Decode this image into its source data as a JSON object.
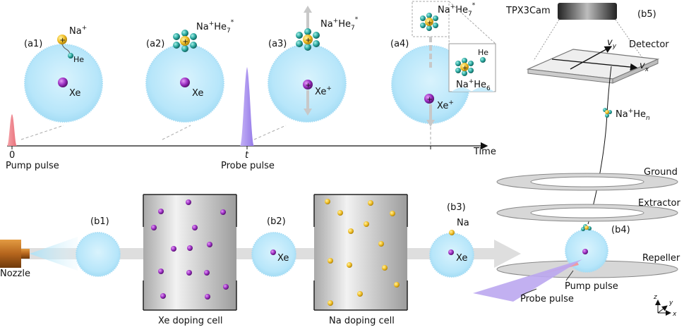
{
  "panels": {
    "a1": {
      "tag": "(a1)",
      "ion": "Na",
      "ion_sup": "+",
      "atom": "He",
      "core": "Xe"
    },
    "a2": {
      "tag": "(a2)",
      "cluster": "Na",
      "cluster_sup": "+",
      "cluster_tail": "He",
      "cluster_sub": "7",
      "cluster_star": "*",
      "core": "Xe"
    },
    "a3": {
      "tag": "(a3)",
      "cluster": "Na",
      "cluster_sup": "+",
      "cluster_tail": "He",
      "cluster_sub": "7",
      "cluster_star": "*",
      "core": "Xe",
      "core_sup": "+"
    },
    "a4": {
      "tag": "(a4)",
      "cluster": "Na",
      "cluster_sup": "+",
      "cluster_tail": "He",
      "cluster_sub": "7",
      "cluster_star": "*",
      "inset_atom": "He",
      "inset_cluster": "Na",
      "inset_cluster_sup": "+",
      "inset_tail": "He",
      "inset_sub": "6",
      "core": "Xe",
      "core_sup": "+"
    }
  },
  "timeline": {
    "zero": "0",
    "t": "t",
    "axis": "Time",
    "pump_label": "Pump pulse",
    "probe_label": "Probe pulse"
  },
  "detector": {
    "tag": "(b5)",
    "camera": "TPX3Cam",
    "label": "Detector",
    "vy": "v",
    "vy_sub": "y",
    "vx": "v",
    "vx_sub": "x",
    "ion": "Na",
    "ion_sup": "+",
    "ion_tail": "He",
    "ion_sub": "n"
  },
  "electrodes": {
    "ground": "Ground",
    "extractor": "Extractor",
    "repeller": "Repeller",
    "tag": "(b4)",
    "pump_label": "Pump pulse",
    "probe_label": "Probe pulse",
    "ax_z": "z",
    "ax_y": "y",
    "ax_x": "x"
  },
  "beamline": {
    "nozzle": "Nozzle",
    "b1": "(b1)",
    "b2": "(b2)",
    "b2_atom": "Xe",
    "b3": "(b3)",
    "b3_na": "Na",
    "b3_xe": "Xe",
    "xe_cell": "Xe doping cell",
    "na_cell": "Na doping cell"
  },
  "colors": {
    "droplet": "#bfe9fb",
    "droplet_edge": "#9fd8f2",
    "xe": "#9b2fc2",
    "na": "#f1bf28",
    "he": "#2aa79f",
    "pump": "#f08a92",
    "probe": "#a58af0",
    "cell": "#d8d8d8",
    "arrow": "#dcdcdc"
  }
}
